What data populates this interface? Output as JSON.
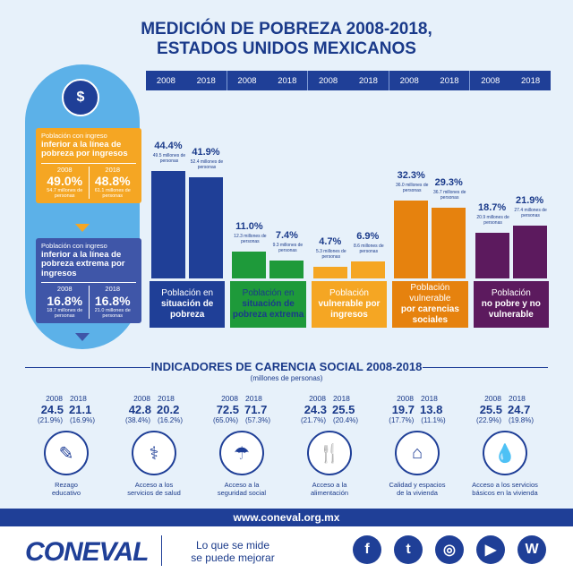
{
  "title": {
    "line1": "MEDICIÓN DE POBREZA 2008-2018,",
    "line2": "ESTADOS UNIDOS MEXICANOS"
  },
  "years": [
    "2008",
    "2018"
  ],
  "sidebar": {
    "coin_symbol": "$",
    "income_card": {
      "line1": "Población con ingreso",
      "bold": "inferior a la línea de pobreza por ingresos",
      "y2008": "2008",
      "y2018": "2018",
      "p2008": "49.0%",
      "p2018": "48.8%",
      "n2008": "54.7 millones de personas",
      "n2018": "61.1 millones de personas"
    },
    "extreme_card": {
      "line1": "Población con ingreso",
      "bold": "inferior a la línea de pobreza extrema por ingresos",
      "y2008": "2008",
      "y2018": "2018",
      "p2008": "16.8%",
      "p2018": "16.8%",
      "n2008": "18.7 millones de personas",
      "n2018": "21.0 millones de personas"
    }
  },
  "colors": {
    "blue": "#1f3f97",
    "green": "#1e9a3a",
    "orange": "#f5a623",
    "orange_dark": "#e6820e",
    "purple": "#5c1a5e",
    "light": "#5cb1e8"
  },
  "chart_data": {
    "type": "bar",
    "categories": [
      "Población en situación de pobreza",
      "Población en situación de pobreza extrema",
      "Población vulnerable por ingresos",
      "Población vulnerable por carencias sociales",
      "Población no pobre y no vulnerable"
    ],
    "series": [
      {
        "name": "2008",
        "values": [
          44.4,
          11.0,
          4.7,
          32.3,
          18.7
        ]
      },
      {
        "name": "2018",
        "values": [
          41.9,
          7.4,
          6.9,
          29.3,
          21.9
        ]
      }
    ],
    "labels_2008": [
      "44.4%",
      "11.0%",
      "4.7%",
      "32.3%",
      "18.7%"
    ],
    "labels_2018": [
      "41.9%",
      "7.4%",
      "6.9%",
      "29.3%",
      "21.9%"
    ],
    "notes_2008": [
      "49.5 millones de personas",
      "12.3 millones de personas",
      "5.3 millones de personas",
      "36.0 millones de personas",
      "20.9 millones de personas"
    ],
    "notes_2018": [
      "52.4 millones de personas",
      "9.3 millones de personas",
      "8.6 millones de personas",
      "36.7 millones de personas",
      "27.4 millones de personas"
    ],
    "category_labels": [
      {
        "a": "Población en",
        "b": "situación de",
        "c": "pobreza"
      },
      {
        "a": "Población en",
        "b": "situación de",
        "c": "pobreza extrema"
      },
      {
        "a": "Población",
        "b": "vulnerable por",
        "c": "ingresos"
      },
      {
        "a": "Población vulnerable",
        "b": "por carencias",
        "c": "sociales"
      },
      {
        "a": "Población",
        "b": "no pobre y no",
        "c": "vulnerable"
      }
    ]
  },
  "indicators": {
    "title": "INDICADORES DE CARENCIA SOCIAL 2008-2018",
    "subtitle": "(millones de personas)",
    "items": [
      {
        "v2008": "24.5",
        "v2018": "21.1",
        "p2008": "(21.9%)",
        "p2018": "(16.9%)",
        "l1": "Rezago",
        "l2": "educativo",
        "icon": "pencil-icon",
        "glyph": "✎"
      },
      {
        "v2008": "42.8",
        "v2018": "20.2",
        "p2008": "(38.4%)",
        "p2018": "(16.2%)",
        "l1": "Acceso a los",
        "l2": "servicios de salud",
        "icon": "doctor-icon",
        "glyph": "⚕"
      },
      {
        "v2008": "72.5",
        "v2018": "71.7",
        "p2008": "(65.0%)",
        "p2018": "(57.3%)",
        "l1": "Acceso a la",
        "l2": "seguridad social",
        "icon": "family-hands-icon",
        "glyph": "☂"
      },
      {
        "v2008": "24.3",
        "v2018": "25.5",
        "p2008": "(21.7%)",
        "p2018": "(20.4%)",
        "l1": "Acceso a la",
        "l2": "alimentación",
        "icon": "plate-icon",
        "glyph": "🍴"
      },
      {
        "v2008": "19.7",
        "v2018": "13.8",
        "p2008": "(17.7%)",
        "p2018": "(11.1%)",
        "l1": "Calidad y espacios",
        "l2": "de la vivienda",
        "icon": "house-icon",
        "glyph": "⌂"
      },
      {
        "v2008": "25.5",
        "v2018": "24.7",
        "p2008": "(22.9%)",
        "p2018": "(19.8%)",
        "l1": "Acceso a los servicios",
        "l2": "básicos en la vivienda",
        "icon": "faucet-icon",
        "glyph": "💧"
      }
    ]
  },
  "footer": {
    "url": "www.coneval.org.mx",
    "logo": "CONEVAL",
    "slogan1": "Lo que se mide",
    "slogan2": "se puede mejorar",
    "social": [
      {
        "icon": "facebook-icon",
        "glyph": "f"
      },
      {
        "icon": "twitter-icon",
        "glyph": "t"
      },
      {
        "icon": "instagram-icon",
        "glyph": "◎"
      },
      {
        "icon": "youtube-icon",
        "glyph": "▶"
      },
      {
        "icon": "wordpress-icon",
        "glyph": "W"
      }
    ]
  }
}
